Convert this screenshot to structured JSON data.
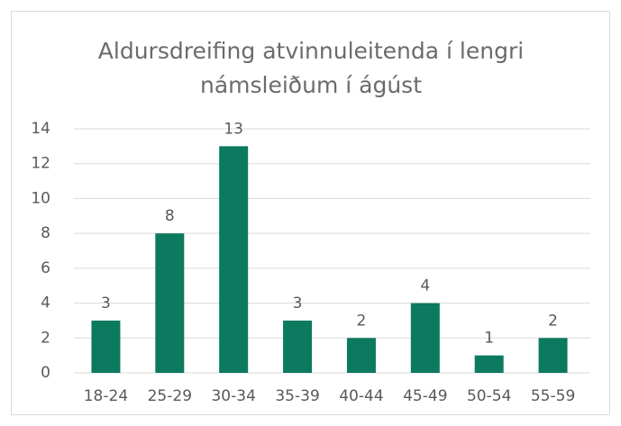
{
  "chart_data": {
    "type": "bar",
    "title": "Aldursdreifing atvinnuleitenda í lengri námsleiðum í ágúst",
    "categories": [
      "18-24",
      "25-29",
      "30-34",
      "35-39",
      "40-44",
      "45-49",
      "50-54",
      "55-59"
    ],
    "values": [
      3,
      8,
      13,
      3,
      2,
      4,
      1,
      2
    ],
    "color": "#0b7a5e",
    "ylim": [
      0,
      14
    ],
    "yticks": [
      0,
      2,
      4,
      6,
      8,
      10,
      12,
      14
    ],
    "grid": true
  }
}
